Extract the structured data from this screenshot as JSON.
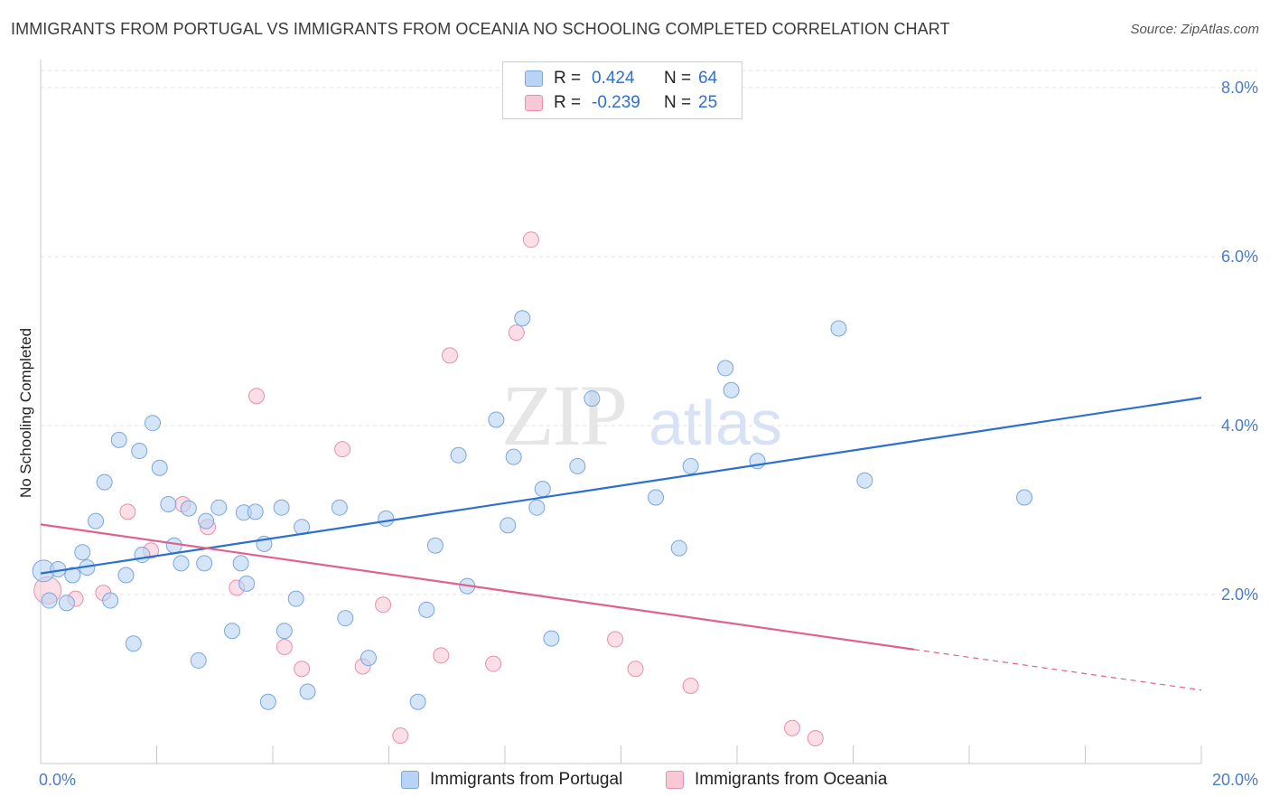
{
  "header": {
    "title": "IMMIGRANTS FROM PORTUGAL VS IMMIGRANTS FROM OCEANIA NO SCHOOLING COMPLETED CORRELATION CHART",
    "source": "Source: ZipAtlas.com"
  },
  "legend": {
    "rows": [
      {
        "r_label": "R =",
        "r_value": "0.424",
        "n_label": "N =",
        "n_value": "64"
      },
      {
        "r_label": "R =",
        "r_value": "-0.239",
        "n_label": "N =",
        "n_value": "25"
      }
    ]
  },
  "colors": {
    "portugal_fill": "#b9d3f4",
    "portugal_stroke": "#7aa6de",
    "portugal_line": "#2a6fd1",
    "oceania_fill": "#f8c8d6",
    "oceania_stroke": "#e88fab",
    "oceania_line": "#e0608e",
    "tick_text": "#4a7cc8",
    "grid": "#e3e3e3"
  },
  "watermark": {
    "zip": "ZIP",
    "atlas": "atlas"
  },
  "chart_data": {
    "type": "scatter",
    "title": "IMMIGRANTS FROM PORTUGAL VS IMMIGRANTS FROM OCEANIA NO SCHOOLING COMPLETED CORRELATION CHART",
    "xlabel": "",
    "ylabel": "No Schooling Completed",
    "xlim": [
      0,
      20
    ],
    "ylim": [
      0,
      8
    ],
    "x_tick_labels": [
      "0.0%",
      "20.0%"
    ],
    "y_ticks": [
      2,
      4,
      6,
      8
    ],
    "y_tick_labels": [
      "2.0%",
      "4.0%",
      "6.0%",
      "8.0%"
    ],
    "grid": true,
    "legend_position": "top-center",
    "series": [
      {
        "name": "Immigrants from Portugal",
        "r": 0.424,
        "n": 64,
        "trend": {
          "x": [
            0,
            20
          ],
          "y": [
            2.25,
            4.33
          ]
        },
        "points": [
          [
            0.05,
            2.28
          ],
          [
            0.15,
            1.93
          ],
          [
            0.3,
            2.3
          ],
          [
            0.45,
            1.9
          ],
          [
            0.55,
            2.23
          ],
          [
            0.72,
            2.5
          ],
          [
            0.8,
            2.32
          ],
          [
            0.95,
            2.87
          ],
          [
            1.1,
            3.33
          ],
          [
            1.2,
            1.93
          ],
          [
            1.35,
            3.83
          ],
          [
            1.47,
            2.23
          ],
          [
            1.6,
            1.42
          ],
          [
            1.7,
            3.7
          ],
          [
            1.75,
            2.47
          ],
          [
            1.93,
            4.03
          ],
          [
            2.05,
            3.5
          ],
          [
            2.2,
            3.07
          ],
          [
            2.3,
            2.58
          ],
          [
            2.42,
            2.37
          ],
          [
            2.55,
            3.02
          ],
          [
            2.72,
            1.22
          ],
          [
            2.82,
            2.37
          ],
          [
            2.85,
            2.87
          ],
          [
            3.07,
            3.03
          ],
          [
            3.3,
            1.57
          ],
          [
            3.45,
            2.37
          ],
          [
            3.5,
            2.97
          ],
          [
            3.55,
            2.13
          ],
          [
            3.7,
            2.98
          ],
          [
            3.85,
            2.6
          ],
          [
            3.92,
            0.73
          ],
          [
            4.15,
            3.03
          ],
          [
            4.2,
            1.57
          ],
          [
            4.4,
            1.95
          ],
          [
            4.5,
            2.8
          ],
          [
            4.6,
            0.85
          ],
          [
            5.15,
            3.03
          ],
          [
            5.25,
            1.72
          ],
          [
            5.65,
            1.25
          ],
          [
            5.95,
            2.9
          ],
          [
            6.5,
            0.73
          ],
          [
            6.65,
            1.82
          ],
          [
            6.8,
            2.58
          ],
          [
            7.2,
            3.65
          ],
          [
            7.35,
            2.1
          ],
          [
            7.85,
            4.07
          ],
          [
            8.05,
            2.82
          ],
          [
            8.15,
            3.63
          ],
          [
            8.3,
            5.27
          ],
          [
            8.55,
            3.03
          ],
          [
            8.65,
            3.25
          ],
          [
            8.8,
            1.48
          ],
          [
            9.25,
            3.52
          ],
          [
            9.5,
            4.32
          ],
          [
            10.6,
            3.15
          ],
          [
            11.0,
            2.55
          ],
          [
            11.2,
            3.52
          ],
          [
            11.8,
            4.68
          ],
          [
            11.9,
            4.42
          ],
          [
            12.35,
            3.58
          ],
          [
            13.75,
            5.15
          ],
          [
            14.2,
            3.35
          ],
          [
            16.95,
            3.15
          ]
        ]
      },
      {
        "name": "Immigrants from Oceania",
        "r": -0.239,
        "n": 25,
        "trend": {
          "x": [
            0,
            15.05
          ],
          "y": [
            2.83,
            1.35
          ]
        },
        "trend_dashed": {
          "x": [
            15.05,
            20
          ],
          "y": [
            1.35,
            0.87
          ]
        },
        "points": [
          [
            0.12,
            2.05
          ],
          [
            0.6,
            1.95
          ],
          [
            1.08,
            2.02
          ],
          [
            1.5,
            2.98
          ],
          [
            1.9,
            2.52
          ],
          [
            2.45,
            3.07
          ],
          [
            2.88,
            2.8
          ],
          [
            3.38,
            2.08
          ],
          [
            3.72,
            4.35
          ],
          [
            4.2,
            1.38
          ],
          [
            4.5,
            1.12
          ],
          [
            5.2,
            3.72
          ],
          [
            5.55,
            1.15
          ],
          [
            5.9,
            1.88
          ],
          [
            6.2,
            0.33
          ],
          [
            6.9,
            1.28
          ],
          [
            7.05,
            4.83
          ],
          [
            7.8,
            1.18
          ],
          [
            8.2,
            5.1
          ],
          [
            8.45,
            6.2
          ],
          [
            9.9,
            1.47
          ],
          [
            10.25,
            1.12
          ],
          [
            11.2,
            0.92
          ],
          [
            12.95,
            0.42
          ],
          [
            13.35,
            0.3
          ]
        ]
      }
    ]
  }
}
